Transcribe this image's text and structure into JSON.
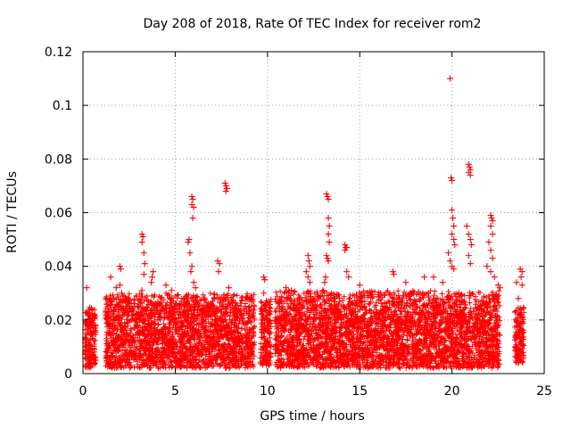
{
  "chart_data": {
    "type": "scatter",
    "title": "Day 208 of 2018, Rate Of TEC Index for receiver rom2",
    "xlabel": "GPS time / hours",
    "ylabel": "ROTI / TECUs",
    "xlim": [
      0,
      25
    ],
    "ylim": [
      0,
      0.12
    ],
    "xticks": [
      0,
      5,
      10,
      15,
      20,
      25
    ],
    "yticks": [
      0,
      0.02,
      0.04,
      0.06,
      0.08,
      0.1,
      0.12
    ],
    "xtick_labels": [
      "0",
      "5",
      "10",
      "15",
      "20",
      "25"
    ],
    "ytick_labels": [
      "0",
      "0.02",
      "0.04",
      "0.06",
      "0.08",
      "0.1",
      "0.12"
    ],
    "grid": true,
    "marker": "+",
    "color": "#ff0000",
    "series": [
      {
        "name": "ROTI",
        "points": [
          [
            0.2,
            0.032
          ],
          [
            0.3,
            0.022
          ],
          [
            0.35,
            0.008
          ],
          [
            0.4,
            0.015
          ],
          [
            1.5,
            0.036
          ],
          [
            1.8,
            0.032
          ],
          [
            2.0,
            0.033
          ],
          [
            2.1,
            0.03
          ],
          [
            2.0,
            0.04
          ],
          [
            2.05,
            0.039
          ],
          [
            3.2,
            0.052
          ],
          [
            3.25,
            0.051
          ],
          [
            3.2,
            0.049
          ],
          [
            3.3,
            0.045
          ],
          [
            3.35,
            0.041
          ],
          [
            3.3,
            0.037
          ],
          [
            3.2,
            0.031
          ],
          [
            3.7,
            0.034
          ],
          [
            3.8,
            0.038
          ],
          [
            3.75,
            0.036
          ],
          [
            4.5,
            0.033
          ],
          [
            4.8,
            0.031
          ],
          [
            5.7,
            0.049
          ],
          [
            5.75,
            0.05
          ],
          [
            5.8,
            0.045
          ],
          [
            5.9,
            0.04
          ],
          [
            5.85,
            0.038
          ],
          [
            5.9,
            0.066
          ],
          [
            5.95,
            0.065
          ],
          [
            5.9,
            0.063
          ],
          [
            6.0,
            0.062
          ],
          [
            5.95,
            0.058
          ],
          [
            6.0,
            0.034
          ],
          [
            6.1,
            0.032
          ],
          [
            7.3,
            0.042
          ],
          [
            7.4,
            0.041
          ],
          [
            7.35,
            0.038
          ],
          [
            7.7,
            0.071
          ],
          [
            7.75,
            0.07
          ],
          [
            7.8,
            0.069
          ],
          [
            7.75,
            0.068
          ],
          [
            7.9,
            0.032
          ],
          [
            9.8,
            0.036
          ],
          [
            9.85,
            0.035
          ],
          [
            9.8,
            0.03
          ],
          [
            11.0,
            0.032
          ],
          [
            11.3,
            0.031
          ],
          [
            12.1,
            0.038
          ],
          [
            12.2,
            0.044
          ],
          [
            12.25,
            0.042
          ],
          [
            12.3,
            0.04
          ],
          [
            12.2,
            0.036
          ],
          [
            12.3,
            0.034
          ],
          [
            13.0,
            0.031
          ],
          [
            13.1,
            0.034
          ],
          [
            13.15,
            0.036
          ],
          [
            13.2,
            0.067
          ],
          [
            13.25,
            0.066
          ],
          [
            13.3,
            0.065
          ],
          [
            13.3,
            0.058
          ],
          [
            13.35,
            0.055
          ],
          [
            13.3,
            0.052
          ],
          [
            13.35,
            0.049
          ],
          [
            13.2,
            0.044
          ],
          [
            13.25,
            0.043
          ],
          [
            13.3,
            0.042
          ],
          [
            14.2,
            0.048
          ],
          [
            14.25,
            0.047
          ],
          [
            14.3,
            0.047
          ],
          [
            14.2,
            0.046
          ],
          [
            14.3,
            0.038
          ],
          [
            14.4,
            0.036
          ],
          [
            15.0,
            0.033
          ],
          [
            16.8,
            0.038
          ],
          [
            16.85,
            0.037
          ],
          [
            17.5,
            0.034
          ],
          [
            18.5,
            0.036
          ],
          [
            19.0,
            0.036
          ],
          [
            19.5,
            0.034
          ],
          [
            19.9,
            0.11
          ],
          [
            19.95,
            0.073
          ],
          [
            20.0,
            0.072
          ],
          [
            20.0,
            0.061
          ],
          [
            20.05,
            0.058
          ],
          [
            20.1,
            0.055
          ],
          [
            20.0,
            0.052
          ],
          [
            20.1,
            0.05
          ],
          [
            20.15,
            0.048
          ],
          [
            19.8,
            0.045
          ],
          [
            19.9,
            0.042
          ],
          [
            20.0,
            0.04
          ],
          [
            20.1,
            0.039
          ],
          [
            20.9,
            0.078
          ],
          [
            20.95,
            0.077
          ],
          [
            21.0,
            0.076
          ],
          [
            20.9,
            0.075
          ],
          [
            21.0,
            0.074
          ],
          [
            20.8,
            0.055
          ],
          [
            20.9,
            0.052
          ],
          [
            21.0,
            0.05
          ],
          [
            21.05,
            0.048
          ],
          [
            20.9,
            0.044
          ],
          [
            21.0,
            0.041
          ],
          [
            22.1,
            0.059
          ],
          [
            22.15,
            0.058
          ],
          [
            22.2,
            0.057
          ],
          [
            22.1,
            0.055
          ],
          [
            22.2,
            0.052
          ],
          [
            22.0,
            0.049
          ],
          [
            22.1,
            0.046
          ],
          [
            22.2,
            0.043
          ],
          [
            21.9,
            0.04
          ],
          [
            22.1,
            0.038
          ],
          [
            22.3,
            0.036
          ],
          [
            22.5,
            0.033
          ],
          [
            22.6,
            0.032
          ],
          [
            23.7,
            0.039
          ],
          [
            23.8,
            0.038
          ],
          [
            23.75,
            0.036
          ],
          [
            23.5,
            0.034
          ],
          [
            23.8,
            0.033
          ],
          [
            23.6,
            0.028
          ],
          [
            23.7,
            0.024
          ],
          [
            23.8,
            0.019
          ],
          [
            23.55,
            0.014
          ],
          [
            23.7,
            0.009
          ],
          [
            23.6,
            0.004
          ]
        ],
        "dense_bands": [
          {
            "x": [
              0.1,
              0.7
            ],
            "y": [
              0.002,
              0.025
            ]
          },
          {
            "x": [
              1.2,
              9.3
            ],
            "y": [
              0.002,
              0.03
            ]
          },
          {
            "x": [
              9.6,
              10.2
            ],
            "y": [
              0.003,
              0.028
            ]
          },
          {
            "x": [
              10.4,
              22.6
            ],
            "y": [
              0.002,
              0.031
            ]
          },
          {
            "x": [
              23.4,
              23.9
            ],
            "y": [
              0.004,
              0.025
            ]
          }
        ]
      }
    ]
  }
}
